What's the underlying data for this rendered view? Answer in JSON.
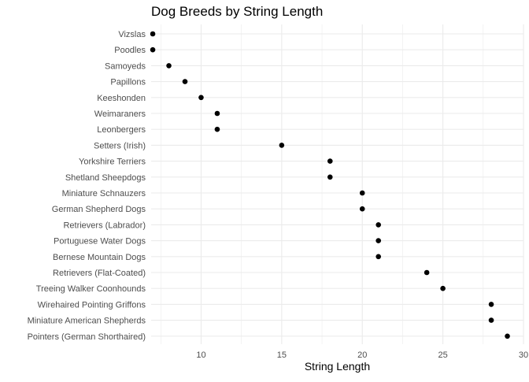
{
  "chart_data": {
    "type": "scatter",
    "title": "Dog Breeds by String Length",
    "xlabel": "String Length",
    "ylabel": "",
    "xlim": [
      6.9,
      30
    ],
    "x_ticks": [
      10,
      15,
      20,
      25,
      30
    ],
    "grid": true,
    "legend": "none",
    "point_color": "#000000",
    "grid_color": "#ebebeb",
    "categories": [
      "Vizslas",
      "Poodles",
      "Samoyeds",
      "Papillons",
      "Keeshonden",
      "Weimaraners",
      "Leonbergers",
      "Setters (Irish)",
      "Yorkshire Terriers",
      "Shetland Sheepdogs",
      "Miniature Schnauzers",
      "German Shepherd Dogs",
      "Retrievers (Labrador)",
      "Portuguese Water Dogs",
      "Bernese Mountain Dogs",
      "Retrievers (Flat-Coated)",
      "Treeing Walker Coonhounds",
      "Wirehaired Pointing Griffons",
      "Miniature American Shepherds",
      "Pointers (German Shorthaired)"
    ],
    "values": [
      7,
      7,
      8,
      9,
      10,
      11,
      11,
      15,
      18,
      18,
      20,
      20,
      21,
      21,
      21,
      24,
      25,
      28,
      28,
      29
    ]
  }
}
